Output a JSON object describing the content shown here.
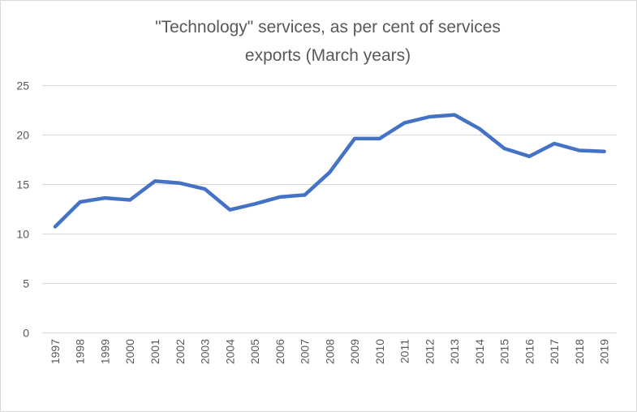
{
  "chart_data": {
    "type": "line",
    "title": [
      "\"Technology\" services, as per cent of services",
      "exports (March years)"
    ],
    "xlabel": "",
    "ylabel": "",
    "categories": [
      "1997",
      "1998",
      "1999",
      "2000",
      "2001",
      "2002",
      "2003",
      "2004",
      "2005",
      "2006",
      "2007",
      "2008",
      "2009",
      "2010",
      "2011",
      "2012",
      "2013",
      "2014",
      "2015",
      "2016",
      "2017",
      "2018",
      "2019"
    ],
    "series": [
      {
        "values": [
          10.7,
          13.2,
          13.6,
          13.4,
          15.3,
          15.1,
          14.5,
          12.4,
          13.0,
          13.7,
          13.9,
          16.2,
          19.6,
          19.6,
          21.2,
          21.8,
          22.0,
          20.6,
          18.6,
          17.8,
          19.1,
          18.4,
          18.3
        ]
      }
    ],
    "ylim": [
      0,
      25
    ],
    "yticks": [
      0,
      5,
      10,
      15,
      20,
      25
    ],
    "grid": true,
    "legend": "none",
    "colors": {
      "line": "#4472C4",
      "grid": "#D9D9D9",
      "text": "#595959",
      "border": "#D9D9D9"
    }
  }
}
